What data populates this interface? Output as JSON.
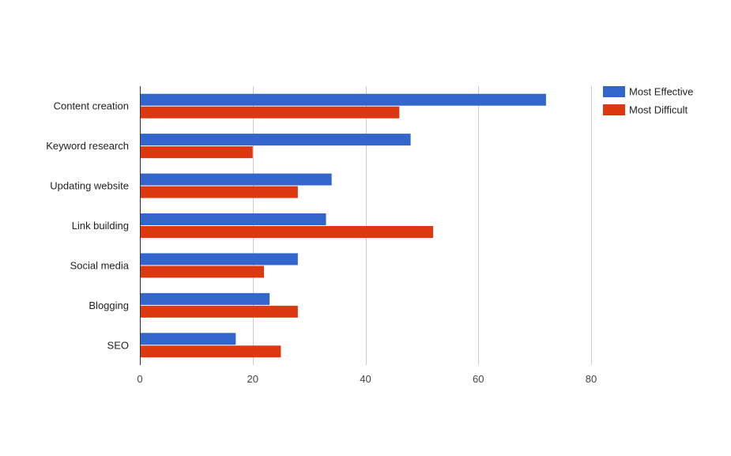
{
  "chart_data": {
    "type": "bar",
    "orientation": "horizontal",
    "title": "",
    "xlabel": "",
    "ylabel": "",
    "categories": [
      "Content creation",
      "Keyword research",
      "Updating website",
      "Link building",
      "Social media",
      "Blogging",
      "SEO"
    ],
    "series": [
      {
        "name": "Most Effective",
        "color": "#3366cc",
        "values": [
          72,
          48,
          34,
          33,
          28,
          23,
          17
        ]
      },
      {
        "name": "Most Difficult",
        "color": "#dc3912",
        "values": [
          46,
          20,
          28,
          52,
          22,
          28,
          25
        ]
      }
    ],
    "xlim": [
      0,
      80
    ],
    "ticks": [
      {
        "value": 0,
        "label": "0"
      },
      {
        "value": 20,
        "label": "20"
      },
      {
        "value": 40,
        "label": "40"
      },
      {
        "value": 60,
        "label": "60"
      },
      {
        "value": 80,
        "label": "80"
      }
    ],
    "grid": true,
    "legend_position": "right"
  }
}
